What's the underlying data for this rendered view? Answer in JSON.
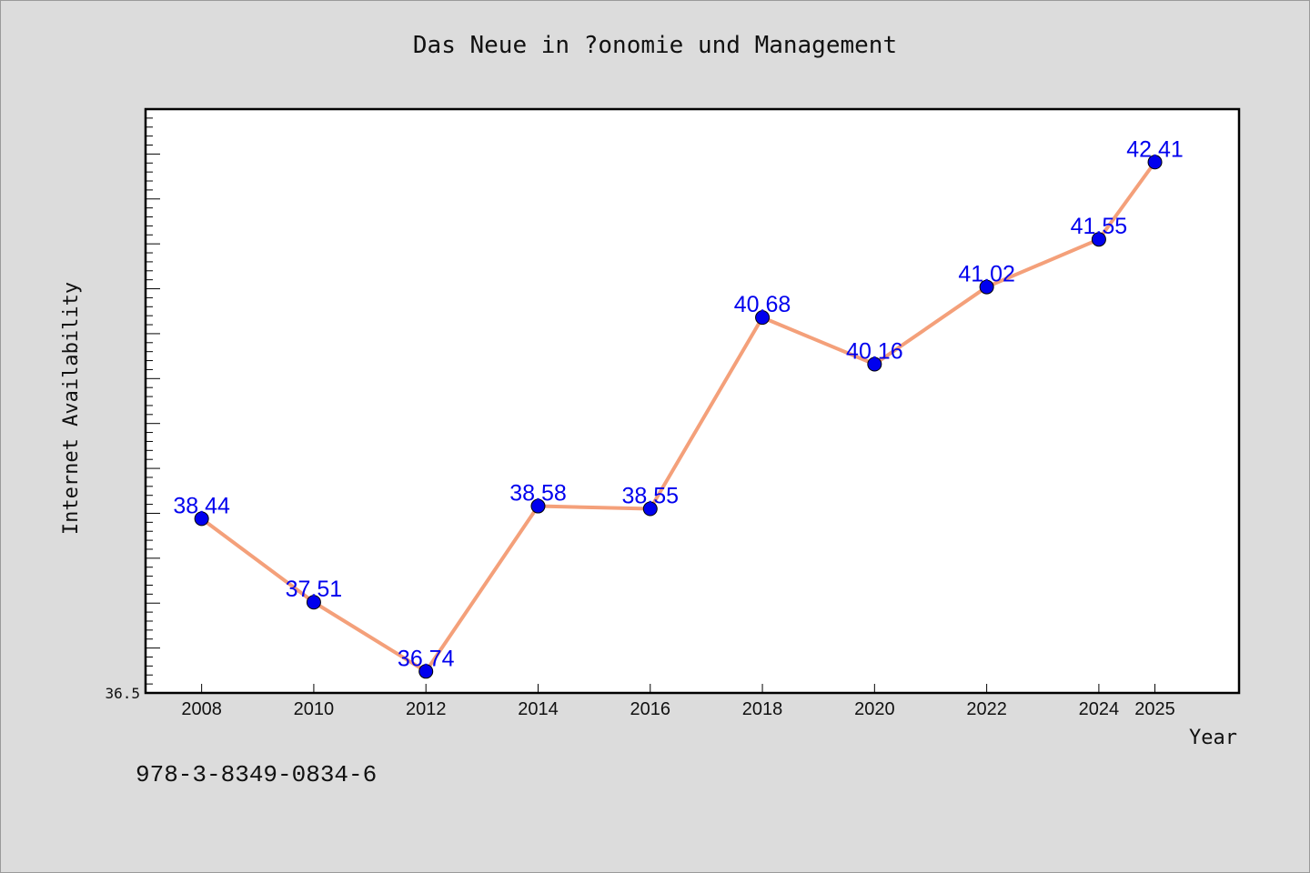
{
  "chart_data": {
    "type": "line",
    "title": "Das Neue in ?onomie und Management",
    "xlabel": "Year",
    "ylabel": "Internet Availability",
    "x": [
      2008,
      2010,
      2012,
      2014,
      2016,
      2018,
      2020,
      2022,
      2024,
      2025
    ],
    "x_tick_labels": [
      "2008",
      "2010",
      "2012",
      "2014",
      "2016",
      "2018",
      "2020",
      "2022",
      "2024",
      "2025"
    ],
    "series": [
      {
        "values": [
          38.44,
          37.51,
          36.74,
          38.58,
          38.55,
          40.68,
          40.16,
          41.02,
          41.55,
          42.41
        ]
      }
    ],
    "data_labels": [
      "38.44",
      "37.51",
      "36.74",
      "38.58",
      "38.55",
      "40.68",
      "40.16",
      "41.02",
      "41.55",
      "42.41"
    ],
    "y_tick_label": "36.5",
    "ylim": [
      36.5,
      43.0
    ],
    "grid": false,
    "colors": {
      "line": "#f4a07a",
      "marker": "#0000ee",
      "label": "#0000ee",
      "background": "#dcdcdc",
      "plot_background": "#ffffff"
    }
  },
  "footer": {
    "isbn": "978-3-8349-0834-6"
  }
}
